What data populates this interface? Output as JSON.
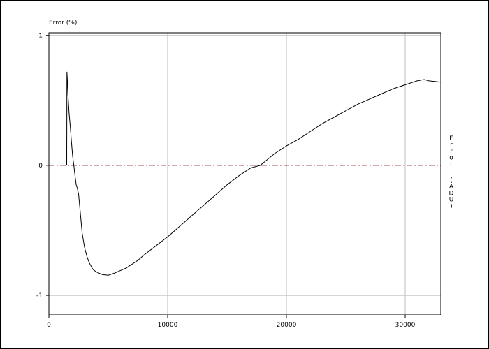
{
  "chart_data": {
    "type": "line",
    "title": "",
    "ylabel": "Error (%)",
    "y2label": "Error (ADU)",
    "xlabel": "",
    "xlim": [
      0,
      33000
    ],
    "ylim": [
      -1.15,
      1.02
    ],
    "grid": true,
    "x_ticks": [
      {
        "value": 0,
        "label": "0"
      },
      {
        "value": 10000,
        "label": "10000"
      },
      {
        "value": 20000,
        "label": "20000"
      },
      {
        "value": 30000,
        "label": "30000"
      }
    ],
    "y_ticks": [
      {
        "value": 1,
        "label": "1"
      },
      {
        "value": 0,
        "label": "0"
      },
      {
        "value": -1,
        "label": "-1"
      }
    ],
    "reference_line": {
      "y": 0,
      "style": "dash-dot"
    },
    "colors": {
      "series": "#000000",
      "reference": "#8b1a1a",
      "grid": "#bdbdbd",
      "frame": "#000000"
    },
    "series": [
      {
        "x": [
          1500,
          1520,
          1560,
          1600,
          1650,
          1700,
          1800,
          1900,
          2000,
          2100,
          2200,
          2300,
          2400,
          2500,
          2600,
          2700,
          2800,
          3000,
          3200,
          3400,
          3700,
          4000,
          4500,
          5000,
          5500,
          6000,
          6500,
          7000,
          7500,
          8000,
          9000,
          10000,
          11000,
          12000,
          13000,
          14000,
          15000,
          16000,
          17000,
          17800,
          19000,
          20000,
          21000,
          22000,
          23000,
          24000,
          25000,
          26000,
          27000,
          28000,
          29000,
          30000,
          31000,
          31600,
          32000,
          32500,
          33000
        ],
        "y": [
          0.0,
          0.72,
          0.65,
          0.55,
          0.48,
          0.4,
          0.3,
          0.18,
          0.07,
          0.0,
          -0.08,
          -0.15,
          -0.18,
          -0.22,
          -0.32,
          -0.42,
          -0.52,
          -0.63,
          -0.7,
          -0.75,
          -0.8,
          -0.82,
          -0.84,
          -0.845,
          -0.83,
          -0.81,
          -0.79,
          -0.76,
          -0.73,
          -0.69,
          -0.62,
          -0.55,
          -0.47,
          -0.39,
          -0.31,
          -0.23,
          -0.15,
          -0.08,
          -0.02,
          0.0,
          0.09,
          0.15,
          0.2,
          0.26,
          0.32,
          0.37,
          0.42,
          0.47,
          0.51,
          0.55,
          0.59,
          0.62,
          0.65,
          0.66,
          0.65,
          0.645,
          0.64
        ]
      }
    ]
  }
}
